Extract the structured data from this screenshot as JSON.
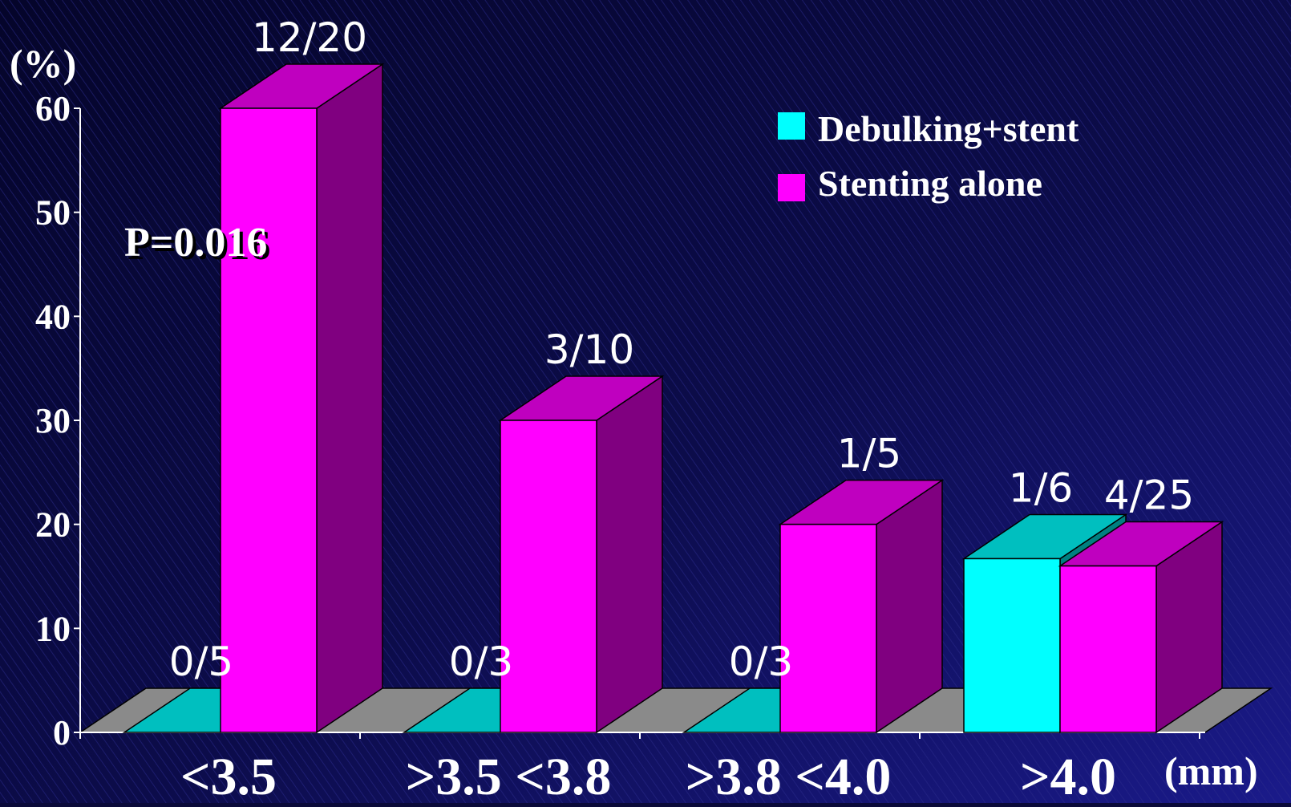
{
  "chart_data": {
    "type": "bar",
    "y_unit": "(%)",
    "x_unit": "(mm)",
    "ylim": [
      0,
      60
    ],
    "yticks": [
      "0",
      "10",
      "20",
      "30",
      "40",
      "50",
      "60"
    ],
    "categories": [
      "<3.5",
      ">3.5 <3.8",
      ">3.8 <4.0",
      ">4.0"
    ],
    "series": [
      {
        "name": "Debulking+stent",
        "color": "#00ffff",
        "values": [
          0,
          0,
          0,
          16.7
        ],
        "labels": [
          "0/5",
          "0/3",
          "0/3",
          "1/6"
        ]
      },
      {
        "name": "Stenting alone",
        "color": "#ff00ff",
        "values": [
          60,
          30,
          20,
          16
        ],
        "labels": [
          "12/20",
          "3/10",
          "1/5",
          "4/25"
        ]
      }
    ],
    "annotation": "P=0.016",
    "style": "3d"
  }
}
